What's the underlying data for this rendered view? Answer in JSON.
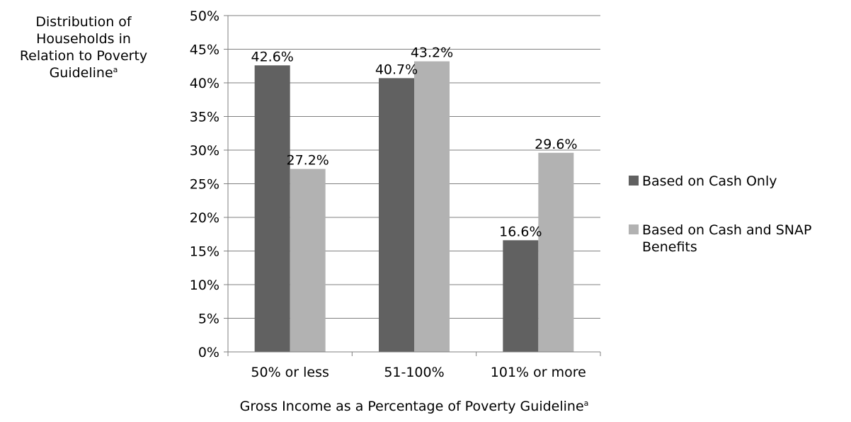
{
  "chart_data": {
    "type": "bar",
    "title": "",
    "ylabel": "Distribution of Households in Relation to Poverty Guideline",
    "ylabel_lines": [
      "Distribution of",
      "Households in",
      "Relation to Poverty",
      "Guideline"
    ],
    "ylabel_superscript": "a",
    "xlabel": "Gross Income as a Percentage of Poverty Guideline",
    "xlabel_superscript": "a",
    "categories": [
      "50% or less",
      "51-100%",
      "101% or more"
    ],
    "ylim": [
      0,
      50
    ],
    "ytick_step": 5,
    "ytick_suffix": "%",
    "grid": true,
    "legend_position": "right",
    "series": [
      {
        "name": "Based on Cash Only",
        "legend_lines": [
          "Based on Cash Only"
        ],
        "values": [
          42.6,
          40.7,
          16.6
        ],
        "labels": [
          "42.6%",
          "40.7%",
          "16.6%"
        ],
        "color": "#616161"
      },
      {
        "name": "Based on Cash and SNAP Benefits",
        "legend_lines": [
          "Based on Cash and SNAP",
          "Benefits"
        ],
        "values": [
          27.2,
          43.2,
          29.6
        ],
        "labels": [
          "27.2%",
          "43.2%",
          "29.6%"
        ],
        "color": "#b2b2b2"
      }
    ]
  }
}
